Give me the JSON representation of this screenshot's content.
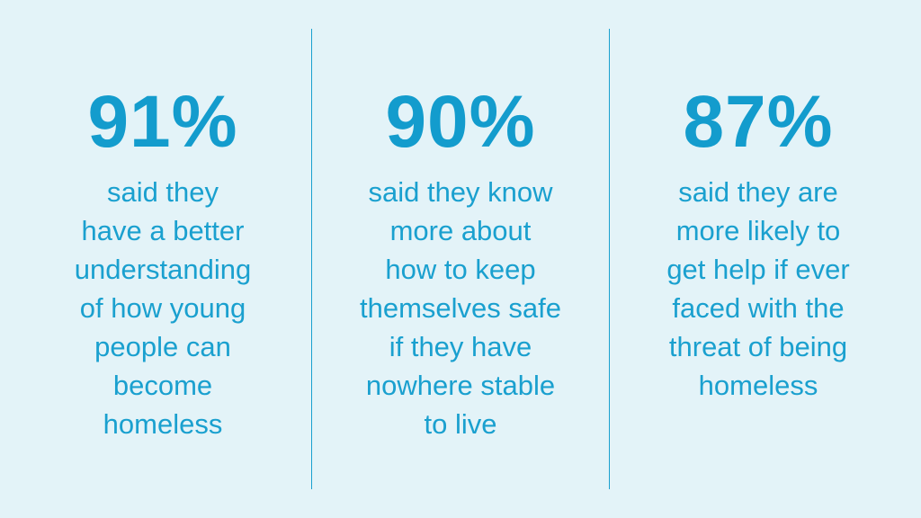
{
  "colors": {
    "background": "#e3f3f8",
    "accent": "#1aa0cf"
  },
  "stats": [
    {
      "value": "91%",
      "lines": [
        "said they",
        "have a better",
        "understanding",
        "of how young",
        "people can",
        "become",
        "homeless"
      ]
    },
    {
      "value": "90%",
      "lines": [
        "said they know",
        "more about",
        "how to keep",
        "themselves safe",
        "if they have",
        "nowhere stable",
        "to live"
      ]
    },
    {
      "value": "87%",
      "lines": [
        "said they are",
        "more likely to",
        "get help if ever",
        "faced with the",
        "threat of being",
        "homeless"
      ]
    }
  ]
}
